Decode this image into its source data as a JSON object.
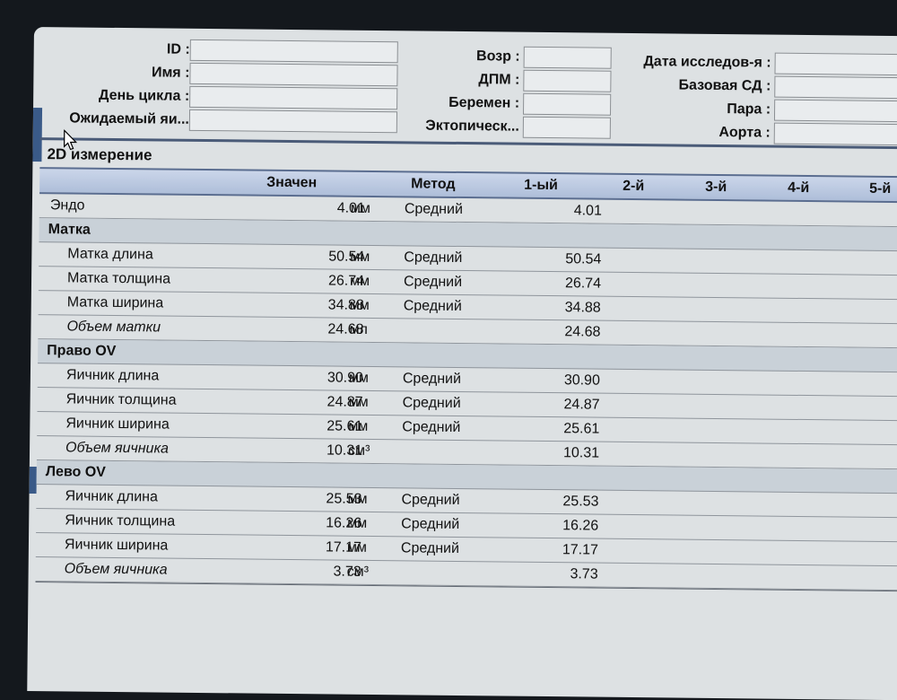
{
  "patient": {
    "id_label": "ID :",
    "name_label": "Имя :",
    "cycle_day_label": "День цикла :",
    "expected_label": "Ожидаемый яи...",
    "age_label": "Возр :",
    "lmp_label": "ДПМ :",
    "pregnant_label": "Беремен :",
    "ectopic_label": "Эктопическ...",
    "exam_date_label": "Дата исследов-я :",
    "base_sd_label": "Базовая СД :",
    "para_label": "Пара :",
    "aorta_label": "Аорта :"
  },
  "section_title": "2D измерение",
  "table": {
    "headers": [
      "Значен",
      "Метод",
      "1-ый",
      "2-й",
      "3-й",
      "4-й",
      "5-й"
    ],
    "rows": [
      {
        "name": "Эндо",
        "value": "4.01",
        "unit": "мм",
        "method": "Средний",
        "first": "4.01"
      },
      {
        "name": "Матка"
      },
      {
        "name": "Матка длина",
        "value": "50.54",
        "unit": "мм",
        "method": "Средний",
        "first": "50.54"
      },
      {
        "name": "Матка толщина",
        "value": "26.74",
        "unit": "мм",
        "method": "Средний",
        "first": "26.74"
      },
      {
        "name": "Матка ширина",
        "value": "34.88",
        "unit": "мм",
        "method": "Средний",
        "first": "34.88"
      },
      {
        "name": "Объем матки",
        "value": "24.68",
        "unit": "мл",
        "method": "",
        "first": "24.68"
      },
      {
        "name": "Право OV"
      },
      {
        "name": "Яичник длина",
        "value": "30.90",
        "unit": "мм",
        "method": "Средний",
        "first": "30.90"
      },
      {
        "name": "Яичник толщина",
        "value": "24.87",
        "unit": "мм",
        "method": "Средний",
        "first": "24.87"
      },
      {
        "name": "Яичник ширина",
        "value": "25.61",
        "unit": "мм",
        "method": "Средний",
        "first": "25.61"
      },
      {
        "name": "Объем яичника",
        "value": "10.31",
        "unit": "см³",
        "method": "",
        "first": "10.31"
      },
      {
        "name": "Лево OV"
      },
      {
        "name": "Яичник длина",
        "value": "25.53",
        "unit": "мм",
        "method": "Средний",
        "first": "25.53"
      },
      {
        "name": "Яичник толщина",
        "value": "16.26",
        "unit": "мм",
        "method": "Средний",
        "first": "16.26"
      },
      {
        "name": "Яичник ширина",
        "value": "17.17",
        "unit": "мм",
        "method": "Средний",
        "first": "17.17"
      },
      {
        "name": "Объем яичника",
        "value": "3.73",
        "unit": "см³",
        "method": "",
        "first": "3.73"
      }
    ]
  }
}
